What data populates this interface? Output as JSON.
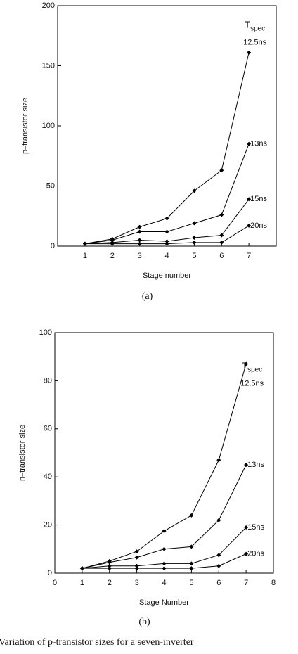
{
  "chart_data": [
    {
      "type": "line",
      "caption": "(a)",
      "xlabel": "Stage number",
      "ylabel": "p–transistor size",
      "legend_title": "T",
      "legend_title_sub": "spec",
      "x": [
        1,
        2,
        3,
        4,
        5,
        6,
        7
      ],
      "xlim": [
        0,
        8
      ],
      "xticks": [
        1,
        2,
        3,
        4,
        5,
        6,
        7
      ],
      "ylim": [
        0,
        200
      ],
      "yticks": [
        0,
        50,
        100,
        150,
        200
      ],
      "series": [
        {
          "name": "12.5ns",
          "color": "#000000",
          "values": [
            2,
            6,
            16,
            23,
            46,
            63,
            161
          ]
        },
        {
          "name": "13ns",
          "color": "#000000",
          "values": [
            2,
            5,
            12,
            12,
            19,
            26,
            85
          ]
        },
        {
          "name": "15ns",
          "color": "#000000",
          "values": [
            2,
            3,
            5,
            4,
            7,
            9,
            39
          ]
        },
        {
          "name": "20ns",
          "color": "#000000",
          "values": [
            2,
            2,
            2,
            2,
            3,
            3,
            17
          ]
        }
      ]
    },
    {
      "type": "line",
      "caption": "(b)",
      "xlabel": "Stage Number",
      "ylabel": "n–transistor size",
      "legend_title": "T",
      "legend_title_sub": "spec",
      "x": [
        1,
        2,
        3,
        4,
        5,
        6,
        7
      ],
      "xlim": [
        0,
        8
      ],
      "xticks": [
        0,
        1,
        2,
        3,
        4,
        5,
        6,
        7,
        8
      ],
      "ylim": [
        0,
        100
      ],
      "yticks": [
        0,
        20,
        40,
        60,
        80,
        100
      ],
      "series": [
        {
          "name": "12.5ns",
          "color": "#000000",
          "values": [
            2,
            5,
            9,
            17.5,
            24,
            47,
            87
          ]
        },
        {
          "name": "13ns",
          "color": "#000000",
          "values": [
            2,
            4.5,
            6.5,
            10,
            11,
            22,
            45
          ]
        },
        {
          "name": "15ns",
          "color": "#000000",
          "values": [
            2,
            3,
            3,
            4,
            4,
            7.5,
            19
          ]
        },
        {
          "name": "20ns",
          "color": "#000000",
          "values": [
            2,
            2,
            2,
            2,
            2,
            3,
            8
          ]
        }
      ]
    }
  ],
  "figure_caption": "Variation of p-transistor sizes for a seven-inverter"
}
